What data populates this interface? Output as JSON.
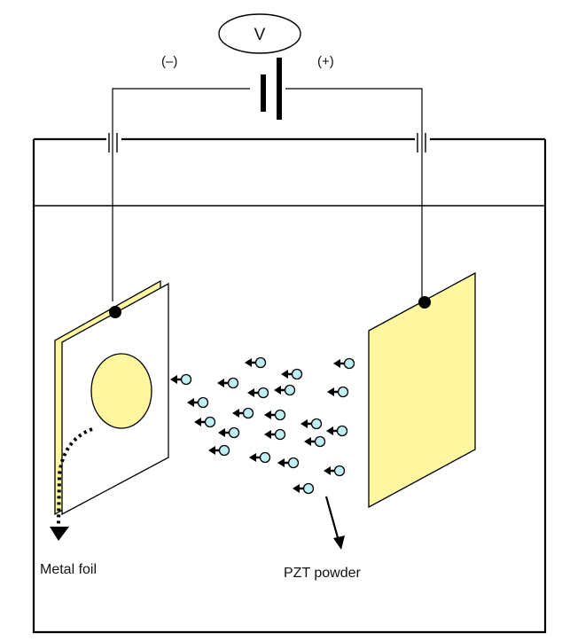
{
  "voltmeter": {
    "symbol": "V",
    "icon": "voltmeter-circle"
  },
  "polarity": {
    "negative": "(–)",
    "positive": "(+)"
  },
  "labels": {
    "metal_foil": "Metal foil",
    "pzt_powder": "PZT powder"
  },
  "colors": {
    "electrode_fill": "#fff7a0",
    "line": "#000000",
    "particle_fill": "#bfeff5",
    "background": "#ffffff"
  },
  "particle_count": 21
}
